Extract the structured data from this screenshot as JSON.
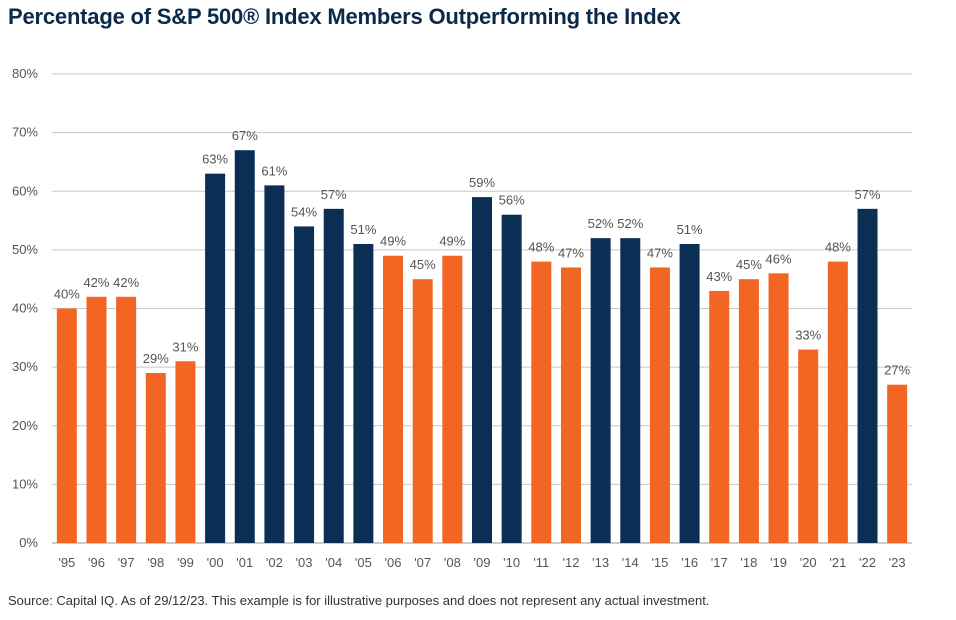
{
  "header": {
    "title": "Percentage of S&P 500® Index Members Outperforming the Index"
  },
  "footer": {
    "source": "Source: Capital IQ. As of 29/12/23. This example is for illustrative purposes and does not represent any actual investment."
  },
  "colors": {
    "outperform": "#0b2e55",
    "underperform": "#f26522",
    "grid": "#c8c8c8",
    "text": "#555555"
  },
  "chart_data": {
    "type": "bar",
    "title": "Percentage of S&P 500® Index Members Outperforming the Index",
    "xlabel": "",
    "ylabel": "",
    "ylim": [
      0,
      80
    ],
    "yticks": [
      0,
      10,
      20,
      30,
      40,
      50,
      60,
      70,
      80
    ],
    "ytick_labels": [
      "0%",
      "10%",
      "20%",
      "30%",
      "40%",
      "50%",
      "60%",
      "70%",
      "80%"
    ],
    "grid": true,
    "categories": [
      "'95",
      "'96",
      "'97",
      "'98",
      "'99",
      "'00",
      "'01",
      "'02",
      "'03",
      "'04",
      "'05",
      "'06",
      "'07",
      "'08",
      "'09",
      "'10",
      "'11",
      "'12",
      "'13",
      "'14",
      "'15",
      "'16",
      "'17",
      "'18",
      "'19",
      "'20",
      "'21",
      "'22",
      "'23"
    ],
    "values": [
      40,
      42,
      42,
      29,
      31,
      63,
      67,
      61,
      54,
      57,
      51,
      49,
      45,
      49,
      59,
      56,
      48,
      47,
      52,
      52,
      47,
      51,
      43,
      45,
      46,
      33,
      48,
      57,
      27
    ],
    "value_labels": [
      "40%",
      "42%",
      "42%",
      "29%",
      "31%",
      "63%",
      "67%",
      "61%",
      "54%",
      "57%",
      "51%",
      "49%",
      "45%",
      "49%",
      "59%",
      "56%",
      "48%",
      "47%",
      "52%",
      "52%",
      "47%",
      "51%",
      "43%",
      "45%",
      "46%",
      "33%",
      "48%",
      "57%",
      "27%"
    ],
    "bar_colors": [
      "underperform",
      "underperform",
      "underperform",
      "underperform",
      "underperform",
      "outperform",
      "outperform",
      "outperform",
      "outperform",
      "outperform",
      "outperform",
      "underperform",
      "underperform",
      "underperform",
      "outperform",
      "outperform",
      "underperform",
      "underperform",
      "outperform",
      "outperform",
      "underperform",
      "outperform",
      "underperform",
      "underperform",
      "underperform",
      "underperform",
      "underperform",
      "outperform",
      "underperform"
    ]
  }
}
